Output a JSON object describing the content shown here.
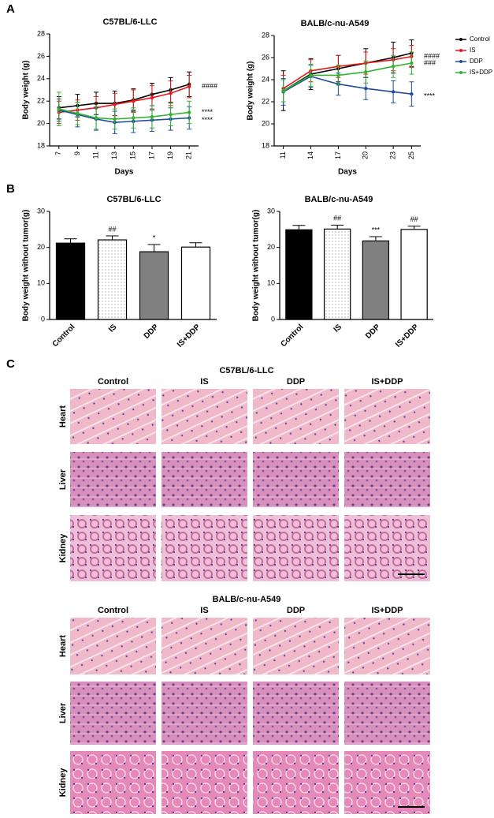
{
  "panels": [
    "A",
    "B",
    "C"
  ],
  "chart_data": [
    {
      "type": "line",
      "title": "C57BL/6-LLC",
      "x_label": "Days",
      "y_label": "Body weight (g)",
      "x": [
        7,
        9,
        11,
        13,
        15,
        17,
        19,
        21
      ],
      "xlim": [
        6,
        22
      ],
      "xticks": [
        7,
        9,
        11,
        13,
        15,
        17,
        19,
        21
      ],
      "ylim": [
        18,
        28
      ],
      "yticks": [
        18,
        20,
        22,
        24,
        26,
        28
      ],
      "series": [
        {
          "name": "Control",
          "color": "#000000",
          "values": [
            21.4,
            21.6,
            21.8,
            21.8,
            22.1,
            22.6,
            23.0,
            23.5
          ],
          "errors": [
            1.0,
            1.0,
            1.0,
            1.1,
            1.0,
            1.0,
            1.1,
            1.1
          ]
        },
        {
          "name": "IS",
          "color": "#e41a1c",
          "values": [
            21.0,
            21.2,
            21.4,
            21.7,
            22.0,
            22.3,
            22.7,
            23.3
          ],
          "errors": [
            1.0,
            0.9,
            1.0,
            1.0,
            1.0,
            1.1,
            1.1,
            1.0
          ],
          "label": "####"
        },
        {
          "name": "DDP",
          "color": "#1f4e9c",
          "values": [
            21.2,
            20.8,
            20.4,
            20.1,
            20.2,
            20.3,
            20.4,
            20.5
          ],
          "errors": [
            1.0,
            1.1,
            1.0,
            1.0,
            1.0,
            1.0,
            1.0,
            1.0
          ],
          "label": "****"
        },
        {
          "name": "IS+DDP",
          "color": "#33b233",
          "values": [
            21.3,
            20.9,
            20.5,
            20.4,
            20.5,
            20.6,
            20.8,
            21.0
          ],
          "errors": [
            1.5,
            1.0,
            1.0,
            0.9,
            0.9,
            1.0,
            1.0,
            1.0
          ],
          "label": "****"
        }
      ]
    },
    {
      "type": "line",
      "title": "BALB/c-nu-A549",
      "x_label": "Days",
      "y_label": "Body weight (g)",
      "x": [
        11,
        14,
        17,
        20,
        23,
        25
      ],
      "xlim": [
        10,
        26
      ],
      "xticks": [
        11,
        14,
        17,
        20,
        23,
        25
      ],
      "ylim": [
        18,
        28
      ],
      "yticks": [
        18,
        20,
        22,
        24,
        26,
        28
      ],
      "legend": "right",
      "series": [
        {
          "name": "Control",
          "color": "#000000",
          "values": [
            23.0,
            24.5,
            25.0,
            25.5,
            26.0,
            26.4
          ],
          "errors": [
            1.8,
            1.4,
            1.2,
            1.3,
            1.4,
            1.2
          ]
        },
        {
          "name": "IS",
          "color": "#e41a1c",
          "values": [
            23.2,
            24.8,
            25.2,
            25.5,
            25.8,
            26.1
          ],
          "errors": [
            1.2,
            1.0,
            1.0,
            1.0,
            1.0,
            1.0
          ],
          "label": "####"
        },
        {
          "name": "DDP",
          "color": "#1f4e9c",
          "values": [
            22.9,
            24.3,
            23.6,
            23.2,
            22.9,
            22.7
          ],
          "errors": [
            1.2,
            1.0,
            1.0,
            1.0,
            1.0,
            1.1
          ],
          "label": "****"
        },
        {
          "name": "IS+DDP",
          "color": "#33b233",
          "values": [
            23.0,
            24.4,
            24.4,
            24.7,
            25.2,
            25.5
          ],
          "errors": [
            1.0,
            1.0,
            0.9,
            1.0,
            1.0,
            1.0
          ],
          "label": "###"
        }
      ]
    },
    {
      "type": "bar",
      "title": "C57BL/6-LLC",
      "y_label": "Body weight without tumor(g)",
      "categories": [
        "Control",
        "IS",
        "DDP",
        "IS+DDP"
      ],
      "values": [
        21.2,
        22.1,
        18.8,
        20.1
      ],
      "errors": [
        1.2,
        1.1,
        2.0,
        1.2
      ],
      "annotations": [
        null,
        "##",
        "*",
        null
      ],
      "fills": [
        "#000000",
        "dots",
        "#808080",
        "#ffffff"
      ],
      "ylim": [
        0,
        30
      ],
      "yticks": [
        0,
        10,
        20,
        30
      ]
    },
    {
      "type": "bar",
      "title": "BALB/c-nu-A549",
      "y_label": "Body weight without tumor(g)",
      "categories": [
        "Control",
        "IS",
        "DDP",
        "IS+DDP"
      ],
      "values": [
        24.9,
        25.1,
        21.8,
        25.0
      ],
      "errors": [
        1.2,
        1.1,
        1.2,
        0.9
      ],
      "annotations": [
        null,
        "##",
        "***",
        "##"
      ],
      "fills": [
        "#000000",
        "dots",
        "#808080",
        "#ffffff"
      ],
      "ylim": [
        0,
        30
      ],
      "yticks": [
        0,
        10,
        20,
        30
      ]
    }
  ],
  "histology": [
    {
      "title": "C57BL/6-LLC",
      "columns": [
        "Control",
        "IS",
        "DDP",
        "IS+DDP"
      ],
      "rows": [
        "Heart",
        "Liver",
        "Kidney"
      ]
    },
    {
      "title": "BALB/c-nu-A549",
      "columns": [
        "Control",
        "IS",
        "DDP",
        "IS+DDP"
      ],
      "rows": [
        "Heart",
        "Liver",
        "Kidney"
      ]
    }
  ]
}
